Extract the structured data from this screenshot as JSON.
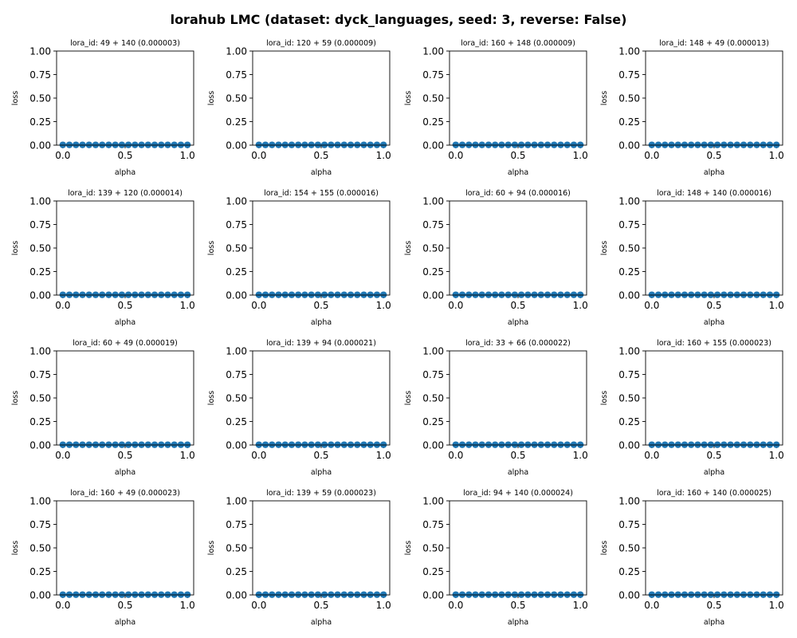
{
  "figure": {
    "title": "lorahub LMC (dataset: dyck_languages, seed: 3, reverse: False)"
  },
  "chart_data": [
    {
      "type": "line",
      "title": "lora_id: 49 + 140 (0.000003)",
      "xlabel": "alpha",
      "ylabel": "loss",
      "x": [
        0,
        0.0526,
        0.1053,
        0.1579,
        0.2105,
        0.2632,
        0.3158,
        0.3684,
        0.4211,
        0.4737,
        0.5263,
        0.5789,
        0.6316,
        0.6842,
        0.7368,
        0.7895,
        0.8421,
        0.8947,
        0.9474,
        1.0
      ],
      "y": [
        0.003,
        0.003,
        0.003,
        0.003,
        0.003,
        0.003,
        0.003,
        0.003,
        0.003,
        0.003,
        0.003,
        0.003,
        0.003,
        0.003,
        0.003,
        0.003,
        0.003,
        0.003,
        0.003,
        0.003
      ],
      "xlim": [
        -0.05,
        1.05
      ],
      "ylim": [
        0,
        1
      ],
      "xticks": [
        "0.0",
        "0.5",
        "1.0"
      ],
      "yticks": [
        "0.00",
        "0.25",
        "0.50",
        "0.75",
        "1.00"
      ],
      "grid": false
    },
    {
      "type": "line",
      "title": "lora_id: 120 + 59 (0.000009)",
      "xlabel": "alpha",
      "ylabel": "loss",
      "x": [
        0,
        0.0526,
        0.1053,
        0.1579,
        0.2105,
        0.2632,
        0.3158,
        0.3684,
        0.4211,
        0.4737,
        0.5263,
        0.5789,
        0.6316,
        0.6842,
        0.7368,
        0.7895,
        0.8421,
        0.8947,
        0.9474,
        1.0
      ],
      "y": [
        0.003,
        0.003,
        0.003,
        0.003,
        0.003,
        0.003,
        0.003,
        0.003,
        0.003,
        0.003,
        0.003,
        0.003,
        0.003,
        0.003,
        0.003,
        0.003,
        0.003,
        0.003,
        0.003,
        0.003
      ],
      "xlim": [
        -0.05,
        1.05
      ],
      "ylim": [
        0,
        1
      ],
      "xticks": [
        "0.0",
        "0.5",
        "1.0"
      ],
      "yticks": [
        "0.00",
        "0.25",
        "0.50",
        "0.75",
        "1.00"
      ],
      "grid": false
    },
    {
      "type": "line",
      "title": "lora_id: 160 + 148 (0.000009)",
      "xlabel": "alpha",
      "ylabel": "loss",
      "x": [
        0,
        0.0526,
        0.1053,
        0.1579,
        0.2105,
        0.2632,
        0.3158,
        0.3684,
        0.4211,
        0.4737,
        0.5263,
        0.5789,
        0.6316,
        0.6842,
        0.7368,
        0.7895,
        0.8421,
        0.8947,
        0.9474,
        1.0
      ],
      "y": [
        0.003,
        0.003,
        0.003,
        0.003,
        0.003,
        0.003,
        0.003,
        0.003,
        0.003,
        0.003,
        0.003,
        0.003,
        0.003,
        0.003,
        0.003,
        0.003,
        0.003,
        0.003,
        0.003,
        0.003
      ],
      "xlim": [
        -0.05,
        1.05
      ],
      "ylim": [
        0,
        1
      ],
      "xticks": [
        "0.0",
        "0.5",
        "1.0"
      ],
      "yticks": [
        "0.00",
        "0.25",
        "0.50",
        "0.75",
        "1.00"
      ],
      "grid": false
    },
    {
      "type": "line",
      "title": "lora_id: 148 + 49 (0.000013)",
      "xlabel": "alpha",
      "ylabel": "loss",
      "x": [
        0,
        0.0526,
        0.1053,
        0.1579,
        0.2105,
        0.2632,
        0.3158,
        0.3684,
        0.4211,
        0.4737,
        0.5263,
        0.5789,
        0.6316,
        0.6842,
        0.7368,
        0.7895,
        0.8421,
        0.8947,
        0.9474,
        1.0
      ],
      "y": [
        0.003,
        0.003,
        0.003,
        0.003,
        0.003,
        0.003,
        0.003,
        0.003,
        0.003,
        0.003,
        0.003,
        0.003,
        0.003,
        0.003,
        0.003,
        0.003,
        0.003,
        0.003,
        0.003,
        0.003
      ],
      "xlim": [
        -0.05,
        1.05
      ],
      "ylim": [
        0,
        1
      ],
      "xticks": [
        "0.0",
        "0.5",
        "1.0"
      ],
      "yticks": [
        "0.00",
        "0.25",
        "0.50",
        "0.75",
        "1.00"
      ],
      "grid": false
    },
    {
      "type": "line",
      "title": "lora_id: 139 + 120 (0.000014)",
      "xlabel": "alpha",
      "ylabel": "loss",
      "x": [
        0,
        0.0526,
        0.1053,
        0.1579,
        0.2105,
        0.2632,
        0.3158,
        0.3684,
        0.4211,
        0.4737,
        0.5263,
        0.5789,
        0.6316,
        0.6842,
        0.7368,
        0.7895,
        0.8421,
        0.8947,
        0.9474,
        1.0
      ],
      "y": [
        0.003,
        0.003,
        0.003,
        0.003,
        0.003,
        0.003,
        0.003,
        0.003,
        0.003,
        0.003,
        0.003,
        0.003,
        0.003,
        0.003,
        0.003,
        0.003,
        0.003,
        0.003,
        0.003,
        0.003
      ],
      "xlim": [
        -0.05,
        1.05
      ],
      "ylim": [
        0,
        1
      ],
      "xticks": [
        "0.0",
        "0.5",
        "1.0"
      ],
      "yticks": [
        "0.00",
        "0.25",
        "0.50",
        "0.75",
        "1.00"
      ],
      "grid": false
    },
    {
      "type": "line",
      "title": "lora_id: 154 + 155 (0.000016)",
      "xlabel": "alpha",
      "ylabel": "loss",
      "x": [
        0,
        0.0526,
        0.1053,
        0.1579,
        0.2105,
        0.2632,
        0.3158,
        0.3684,
        0.4211,
        0.4737,
        0.5263,
        0.5789,
        0.6316,
        0.6842,
        0.7368,
        0.7895,
        0.8421,
        0.8947,
        0.9474,
        1.0
      ],
      "y": [
        0.003,
        0.003,
        0.003,
        0.003,
        0.003,
        0.003,
        0.003,
        0.003,
        0.003,
        0.003,
        0.003,
        0.003,
        0.003,
        0.003,
        0.003,
        0.003,
        0.003,
        0.003,
        0.003,
        0.003
      ],
      "xlim": [
        -0.05,
        1.05
      ],
      "ylim": [
        0,
        1
      ],
      "xticks": [
        "0.0",
        "0.5",
        "1.0"
      ],
      "yticks": [
        "0.00",
        "0.25",
        "0.50",
        "0.75",
        "1.00"
      ],
      "grid": false
    },
    {
      "type": "line",
      "title": "lora_id: 60 + 94 (0.000016)",
      "xlabel": "alpha",
      "ylabel": "loss",
      "x": [
        0,
        0.0526,
        0.1053,
        0.1579,
        0.2105,
        0.2632,
        0.3158,
        0.3684,
        0.4211,
        0.4737,
        0.5263,
        0.5789,
        0.6316,
        0.6842,
        0.7368,
        0.7895,
        0.8421,
        0.8947,
        0.9474,
        1.0
      ],
      "y": [
        0.003,
        0.003,
        0.003,
        0.003,
        0.003,
        0.003,
        0.003,
        0.003,
        0.003,
        0.003,
        0.003,
        0.003,
        0.003,
        0.003,
        0.003,
        0.003,
        0.003,
        0.003,
        0.003,
        0.003
      ],
      "xlim": [
        -0.05,
        1.05
      ],
      "ylim": [
        0,
        1
      ],
      "xticks": [
        "0.0",
        "0.5",
        "1.0"
      ],
      "yticks": [
        "0.00",
        "0.25",
        "0.50",
        "0.75",
        "1.00"
      ],
      "grid": false
    },
    {
      "type": "line",
      "title": "lora_id: 148 + 140 (0.000016)",
      "xlabel": "alpha",
      "ylabel": "loss",
      "x": [
        0,
        0.0526,
        0.1053,
        0.1579,
        0.2105,
        0.2632,
        0.3158,
        0.3684,
        0.4211,
        0.4737,
        0.5263,
        0.5789,
        0.6316,
        0.6842,
        0.7368,
        0.7895,
        0.8421,
        0.8947,
        0.9474,
        1.0
      ],
      "y": [
        0.003,
        0.003,
        0.003,
        0.003,
        0.003,
        0.003,
        0.003,
        0.003,
        0.003,
        0.003,
        0.003,
        0.003,
        0.003,
        0.003,
        0.003,
        0.003,
        0.003,
        0.003,
        0.003,
        0.003
      ],
      "xlim": [
        -0.05,
        1.05
      ],
      "ylim": [
        0,
        1
      ],
      "xticks": [
        "0.0",
        "0.5",
        "1.0"
      ],
      "yticks": [
        "0.00",
        "0.25",
        "0.50",
        "0.75",
        "1.00"
      ],
      "grid": false
    },
    {
      "type": "line",
      "title": "lora_id: 60 + 49 (0.000019)",
      "xlabel": "alpha",
      "ylabel": "loss",
      "x": [
        0,
        0.0526,
        0.1053,
        0.1579,
        0.2105,
        0.2632,
        0.3158,
        0.3684,
        0.4211,
        0.4737,
        0.5263,
        0.5789,
        0.6316,
        0.6842,
        0.7368,
        0.7895,
        0.8421,
        0.8947,
        0.9474,
        1.0
      ],
      "y": [
        0.003,
        0.003,
        0.003,
        0.003,
        0.003,
        0.003,
        0.003,
        0.003,
        0.003,
        0.003,
        0.003,
        0.003,
        0.003,
        0.003,
        0.003,
        0.003,
        0.003,
        0.003,
        0.003,
        0.003
      ],
      "xlim": [
        -0.05,
        1.05
      ],
      "ylim": [
        0,
        1
      ],
      "xticks": [
        "0.0",
        "0.5",
        "1.0"
      ],
      "yticks": [
        "0.00",
        "0.25",
        "0.50",
        "0.75",
        "1.00"
      ],
      "grid": false
    },
    {
      "type": "line",
      "title": "lora_id: 139 + 94 (0.000021)",
      "xlabel": "alpha",
      "ylabel": "loss",
      "x": [
        0,
        0.0526,
        0.1053,
        0.1579,
        0.2105,
        0.2632,
        0.3158,
        0.3684,
        0.4211,
        0.4737,
        0.5263,
        0.5789,
        0.6316,
        0.6842,
        0.7368,
        0.7895,
        0.8421,
        0.8947,
        0.9474,
        1.0
      ],
      "y": [
        0.003,
        0.003,
        0.003,
        0.003,
        0.003,
        0.003,
        0.003,
        0.003,
        0.003,
        0.003,
        0.003,
        0.003,
        0.003,
        0.003,
        0.003,
        0.003,
        0.003,
        0.003,
        0.003,
        0.003
      ],
      "xlim": [
        -0.05,
        1.05
      ],
      "ylim": [
        0,
        1
      ],
      "xticks": [
        "0.0",
        "0.5",
        "1.0"
      ],
      "yticks": [
        "0.00",
        "0.25",
        "0.50",
        "0.75",
        "1.00"
      ],
      "grid": false
    },
    {
      "type": "line",
      "title": "lora_id: 33 + 66 (0.000022)",
      "xlabel": "alpha",
      "ylabel": "loss",
      "x": [
        0,
        0.0526,
        0.1053,
        0.1579,
        0.2105,
        0.2632,
        0.3158,
        0.3684,
        0.4211,
        0.4737,
        0.5263,
        0.5789,
        0.6316,
        0.6842,
        0.7368,
        0.7895,
        0.8421,
        0.8947,
        0.9474,
        1.0
      ],
      "y": [
        0.003,
        0.003,
        0.003,
        0.003,
        0.003,
        0.003,
        0.003,
        0.003,
        0.003,
        0.003,
        0.003,
        0.003,
        0.003,
        0.003,
        0.003,
        0.003,
        0.003,
        0.003,
        0.003,
        0.003
      ],
      "xlim": [
        -0.05,
        1.05
      ],
      "ylim": [
        0,
        1
      ],
      "xticks": [
        "0.0",
        "0.5",
        "1.0"
      ],
      "yticks": [
        "0.00",
        "0.25",
        "0.50",
        "0.75",
        "1.00"
      ],
      "grid": false
    },
    {
      "type": "line",
      "title": "lora_id: 160 + 155 (0.000023)",
      "xlabel": "alpha",
      "ylabel": "loss",
      "x": [
        0,
        0.0526,
        0.1053,
        0.1579,
        0.2105,
        0.2632,
        0.3158,
        0.3684,
        0.4211,
        0.4737,
        0.5263,
        0.5789,
        0.6316,
        0.6842,
        0.7368,
        0.7895,
        0.8421,
        0.8947,
        0.9474,
        1.0
      ],
      "y": [
        0.003,
        0.003,
        0.003,
        0.003,
        0.003,
        0.003,
        0.003,
        0.003,
        0.003,
        0.003,
        0.003,
        0.003,
        0.003,
        0.003,
        0.003,
        0.003,
        0.003,
        0.003,
        0.003,
        0.003
      ],
      "xlim": [
        -0.05,
        1.05
      ],
      "ylim": [
        0,
        1
      ],
      "xticks": [
        "0.0",
        "0.5",
        "1.0"
      ],
      "yticks": [
        "0.00",
        "0.25",
        "0.50",
        "0.75",
        "1.00"
      ],
      "grid": false
    },
    {
      "type": "line",
      "title": "lora_id: 160 + 49 (0.000023)",
      "xlabel": "alpha",
      "ylabel": "loss",
      "x": [
        0,
        0.0526,
        0.1053,
        0.1579,
        0.2105,
        0.2632,
        0.3158,
        0.3684,
        0.4211,
        0.4737,
        0.5263,
        0.5789,
        0.6316,
        0.6842,
        0.7368,
        0.7895,
        0.8421,
        0.8947,
        0.9474,
        1.0
      ],
      "y": [
        0.003,
        0.003,
        0.003,
        0.003,
        0.003,
        0.003,
        0.003,
        0.003,
        0.003,
        0.003,
        0.003,
        0.003,
        0.003,
        0.003,
        0.003,
        0.003,
        0.003,
        0.003,
        0.003,
        0.003
      ],
      "xlim": [
        -0.05,
        1.05
      ],
      "ylim": [
        0,
        1
      ],
      "xticks": [
        "0.0",
        "0.5",
        "1.0"
      ],
      "yticks": [
        "0.00",
        "0.25",
        "0.50",
        "0.75",
        "1.00"
      ],
      "grid": false
    },
    {
      "type": "line",
      "title": "lora_id: 139 + 59 (0.000023)",
      "xlabel": "alpha",
      "ylabel": "loss",
      "x": [
        0,
        0.0526,
        0.1053,
        0.1579,
        0.2105,
        0.2632,
        0.3158,
        0.3684,
        0.4211,
        0.4737,
        0.5263,
        0.5789,
        0.6316,
        0.6842,
        0.7368,
        0.7895,
        0.8421,
        0.8947,
        0.9474,
        1.0
      ],
      "y": [
        0.003,
        0.003,
        0.003,
        0.003,
        0.003,
        0.003,
        0.003,
        0.003,
        0.003,
        0.003,
        0.003,
        0.003,
        0.003,
        0.003,
        0.003,
        0.003,
        0.003,
        0.003,
        0.003,
        0.003
      ],
      "xlim": [
        -0.05,
        1.05
      ],
      "ylim": [
        0,
        1
      ],
      "xticks": [
        "0.0",
        "0.5",
        "1.0"
      ],
      "yticks": [
        "0.00",
        "0.25",
        "0.50",
        "0.75",
        "1.00"
      ],
      "grid": false
    },
    {
      "type": "line",
      "title": "lora_id: 94 + 140 (0.000024)",
      "xlabel": "alpha",
      "ylabel": "loss",
      "x": [
        0,
        0.0526,
        0.1053,
        0.1579,
        0.2105,
        0.2632,
        0.3158,
        0.3684,
        0.4211,
        0.4737,
        0.5263,
        0.5789,
        0.6316,
        0.6842,
        0.7368,
        0.7895,
        0.8421,
        0.8947,
        0.9474,
        1.0
      ],
      "y": [
        0.003,
        0.003,
        0.003,
        0.003,
        0.003,
        0.003,
        0.003,
        0.003,
        0.003,
        0.003,
        0.003,
        0.003,
        0.003,
        0.003,
        0.003,
        0.003,
        0.003,
        0.003,
        0.003,
        0.003
      ],
      "xlim": [
        -0.05,
        1.05
      ],
      "ylim": [
        0,
        1
      ],
      "xticks": [
        "0.0",
        "0.5",
        "1.0"
      ],
      "yticks": [
        "0.00",
        "0.25",
        "0.50",
        "0.75",
        "1.00"
      ],
      "grid": false
    },
    {
      "type": "line",
      "title": "lora_id: 160 + 140 (0.000025)",
      "xlabel": "alpha",
      "ylabel": "loss",
      "x": [
        0,
        0.0526,
        0.1053,
        0.1579,
        0.2105,
        0.2632,
        0.3158,
        0.3684,
        0.4211,
        0.4737,
        0.5263,
        0.5789,
        0.6316,
        0.6842,
        0.7368,
        0.7895,
        0.8421,
        0.8947,
        0.9474,
        1.0
      ],
      "y": [
        0.003,
        0.003,
        0.003,
        0.003,
        0.003,
        0.003,
        0.003,
        0.003,
        0.003,
        0.003,
        0.003,
        0.003,
        0.003,
        0.003,
        0.003,
        0.003,
        0.003,
        0.003,
        0.003,
        0.003
      ],
      "xlim": [
        -0.05,
        1.05
      ],
      "ylim": [
        0,
        1
      ],
      "xticks": [
        "0.0",
        "0.5",
        "1.0"
      ],
      "yticks": [
        "0.00",
        "0.25",
        "0.50",
        "0.75",
        "1.00"
      ],
      "grid": false
    }
  ]
}
